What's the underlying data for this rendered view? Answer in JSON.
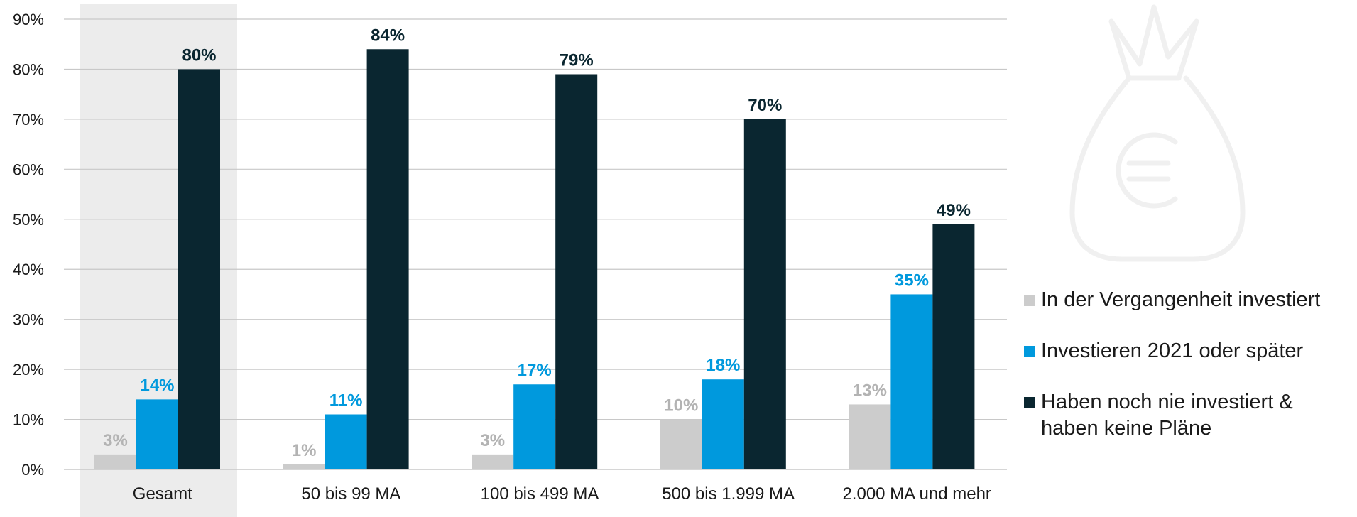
{
  "chart_data": {
    "type": "bar",
    "categories": [
      "Gesamt",
      "50 bis 99 MA",
      "100 bis 499 MA",
      "500 bis 1.999 MA",
      "2.000 MA und mehr"
    ],
    "series": [
      {
        "name": "In der Vergangenheit investiert",
        "values": [
          3,
          1,
          3,
          10,
          13
        ],
        "color": "#cccccc",
        "label_color": "#b3b3b3"
      },
      {
        "name": "Investieren 2021 oder später",
        "values": [
          14,
          11,
          17,
          18,
          35
        ],
        "color": "#0099dd",
        "label_color": "#0099dd"
      },
      {
        "name": "Haben noch nie investiert &\nhaben keine Pläne",
        "values": [
          80,
          84,
          79,
          70,
          49
        ],
        "color": "#0a2630",
        "label_color": "#0a2630"
      }
    ],
    "y_ticks": [
      "0%",
      "10%",
      "20%",
      "30%",
      "40%",
      "50%",
      "60%",
      "70%",
      "80%",
      "90%"
    ],
    "ylim": [
      0,
      90
    ],
    "grid": true,
    "legend_position": "right",
    "highlighted_category": "Gesamt",
    "highlight_color": "#ececec",
    "gridline_color": "#c8c8c8"
  }
}
